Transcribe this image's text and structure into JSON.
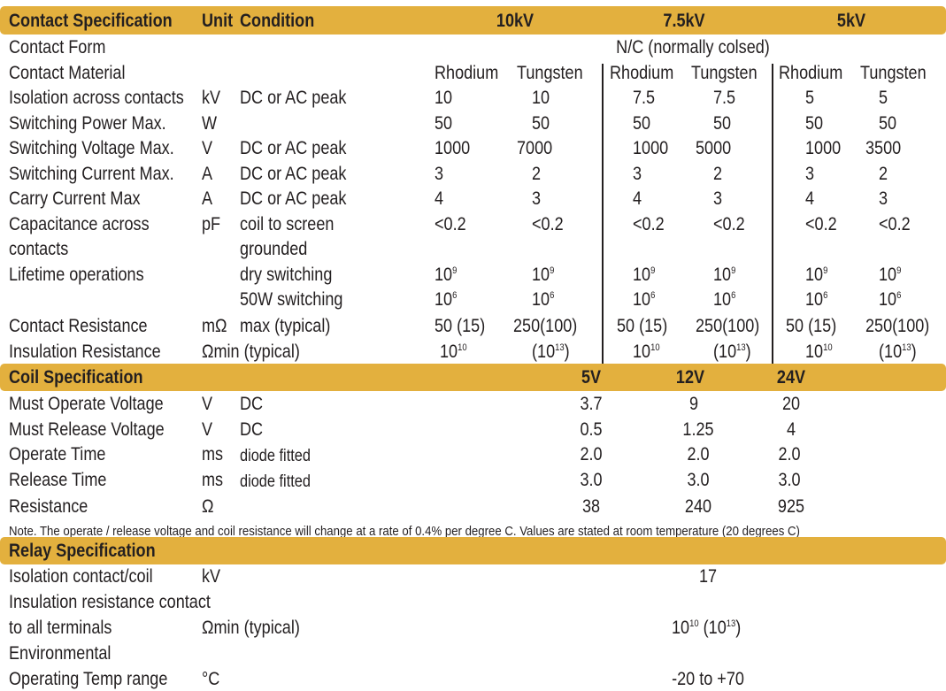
{
  "colors": {
    "header_bar": "#e3b03e",
    "text": "#231f20"
  },
  "contact": {
    "title": "Contact Specification",
    "unit_header": "Unit",
    "condition_header": "Condition",
    "voltages": [
      "10kV",
      "7.5kV",
      "5kV"
    ],
    "rows": {
      "form": {
        "label": "Contact Form",
        "value": "N/C (normally colsed)"
      },
      "material": {
        "label": "Contact Material",
        "values": [
          "Rhodium",
          "Tungsten",
          "Rhodium",
          "Tungsten",
          "Rhodium",
          "Tungsten"
        ]
      },
      "isolation": {
        "label": "Isolation across contacts",
        "unit": "kV",
        "cond": "DC or AC peak",
        "values": [
          "10",
          "10",
          "7.5",
          "7.5",
          "5",
          "5"
        ]
      },
      "power": {
        "label": "Switching Power Max.",
        "unit": "W",
        "cond": "",
        "values": [
          "50",
          "50",
          "50",
          "50",
          "50",
          "50"
        ]
      },
      "voltage": {
        "label": "Switching Voltage Max.",
        "unit": "V",
        "cond": "DC or AC peak",
        "values": [
          "1000",
          "7000",
          "1000",
          "5000",
          "1000",
          "3500"
        ]
      },
      "current": {
        "label": "Switching Current Max.",
        "unit": "A",
        "cond": "DC or AC peak",
        "values": [
          "3",
          "2",
          "3",
          "2",
          "3",
          "2"
        ]
      },
      "carry": {
        "label": "Carry Current Max",
        "unit": "A",
        "cond": "DC or AC peak",
        "values": [
          "4",
          "3",
          "4",
          "3",
          "4",
          "3"
        ]
      },
      "cap": {
        "label_1": "Capacitance across",
        "label_2": "contacts",
        "unit": "pF",
        "cond_1": "coil to screen",
        "cond_2": "grounded",
        "values": [
          "<0.2",
          "<0.2",
          "<0.2",
          "<0.2",
          "<0.2",
          "<0.2"
        ]
      },
      "life": {
        "label": "Lifetime operations",
        "cond_1": "dry switching",
        "cond_2": "50W switching",
        "base": "10",
        "exp_1": "9",
        "exp_2": "6"
      },
      "resistance": {
        "label": "Contact Resistance",
        "unit": "mΩ",
        "cond": "max (typical)",
        "values": [
          "50 (15)",
          "250(100)",
          "50 (15)",
          "250(100)",
          "50 (15)",
          "250(100)"
        ]
      },
      "insulation": {
        "label": "Insulation Resistance",
        "unit": "Ω",
        "cond": "min (typical)",
        "base": "10",
        "exp_a": "10",
        "exp_b": "13",
        "open": "(",
        "close": ")"
      }
    }
  },
  "coil": {
    "title": "Coil Specification",
    "voltages": [
      "5V",
      "12V",
      "24V"
    ],
    "rows": [
      {
        "label": "Must Operate Voltage",
        "unit": "V",
        "cond": "DC",
        "values": [
          "3.7",
          "9",
          "20"
        ]
      },
      {
        "label": "Must Release Voltage",
        "unit": "V",
        "cond": "DC",
        "values": [
          "0.5",
          "1.25",
          "4"
        ]
      },
      {
        "label": "Operate Time",
        "unit": "ms",
        "cond": "diode fitted",
        "values": [
          "2.0",
          "2.0",
          "2.0"
        ]
      },
      {
        "label": "Release Time",
        "unit": "ms",
        "cond": "diode fitted",
        "values": [
          "3.0",
          "3.0",
          "3.0"
        ]
      },
      {
        "label": "Resistance",
        "unit": "Ω",
        "cond": "",
        "values": [
          "38",
          "240",
          "925"
        ]
      }
    ],
    "note": "Note. The operate / release voltage and coil resistance will change at a rate of 0.4% per degree C. Values are stated at room temperature (20 degrees C)"
  },
  "relay": {
    "title": "Relay Specification",
    "isolation": {
      "label": "Isolation contact/coil",
      "unit": "kV",
      "value": "17"
    },
    "insulation": {
      "label_1": "Insulation resistance contact",
      "label_2": "to all terminals",
      "unit": "Ω",
      "cond": "min (typical)",
      "base": "10",
      "exp_a": "10",
      "exp_b": "13",
      "mid": " (",
      "close": ")"
    },
    "environmental": {
      "label": "Environmental"
    },
    "temp": {
      "label": "Operating Temp range",
      "unit": "°C",
      "value": "-20 to +70"
    }
  }
}
